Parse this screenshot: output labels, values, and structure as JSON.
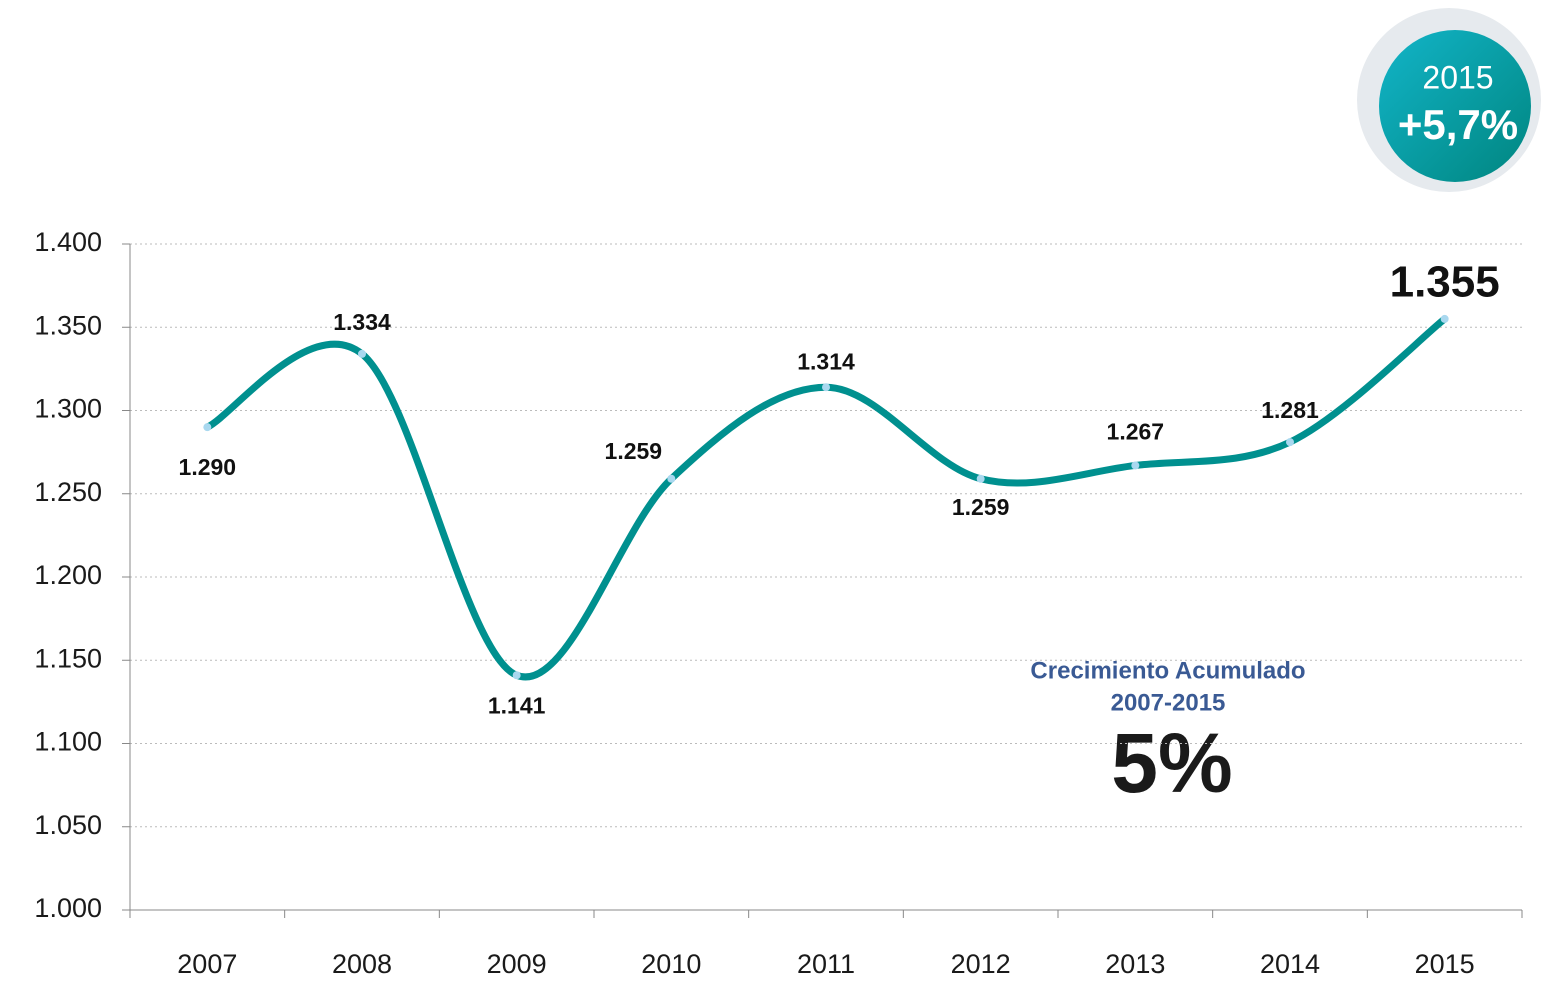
{
  "chart_data": {
    "type": "line",
    "categories": [
      "2007",
      "2008",
      "2009",
      "2010",
      "2011",
      "2012",
      "2013",
      "2014",
      "2015"
    ],
    "values": [
      1290,
      1334,
      1141,
      1259,
      1314,
      1259,
      1267,
      1281,
      1355
    ],
    "value_labels": [
      "1.290",
      "1.334",
      "1.141",
      "1.259",
      "1.314",
      "1.259",
      "1.267",
      "1.281",
      "1.355"
    ],
    "color": "#00908f",
    "ylim": [
      1000,
      1400
    ],
    "yticks": [
      {
        "value": 1000,
        "label": "1.000"
      },
      {
        "value": 1050,
        "label": "1.050"
      },
      {
        "value": 1100,
        "label": "1.100"
      },
      {
        "value": 1150,
        "label": "1.150"
      },
      {
        "value": 1200,
        "label": "1.200"
      },
      {
        "value": 1250,
        "label": "1.250"
      },
      {
        "value": 1300,
        "label": "1.300"
      },
      {
        "value": 1350,
        "label": "1.350"
      },
      {
        "value": 1400,
        "label": "1.400"
      }
    ],
    "grid": true,
    "annotations": [
      "2015",
      "+5,7%",
      "Crecimiento Acumulado",
      "2007-2015",
      "5%"
    ]
  }
}
